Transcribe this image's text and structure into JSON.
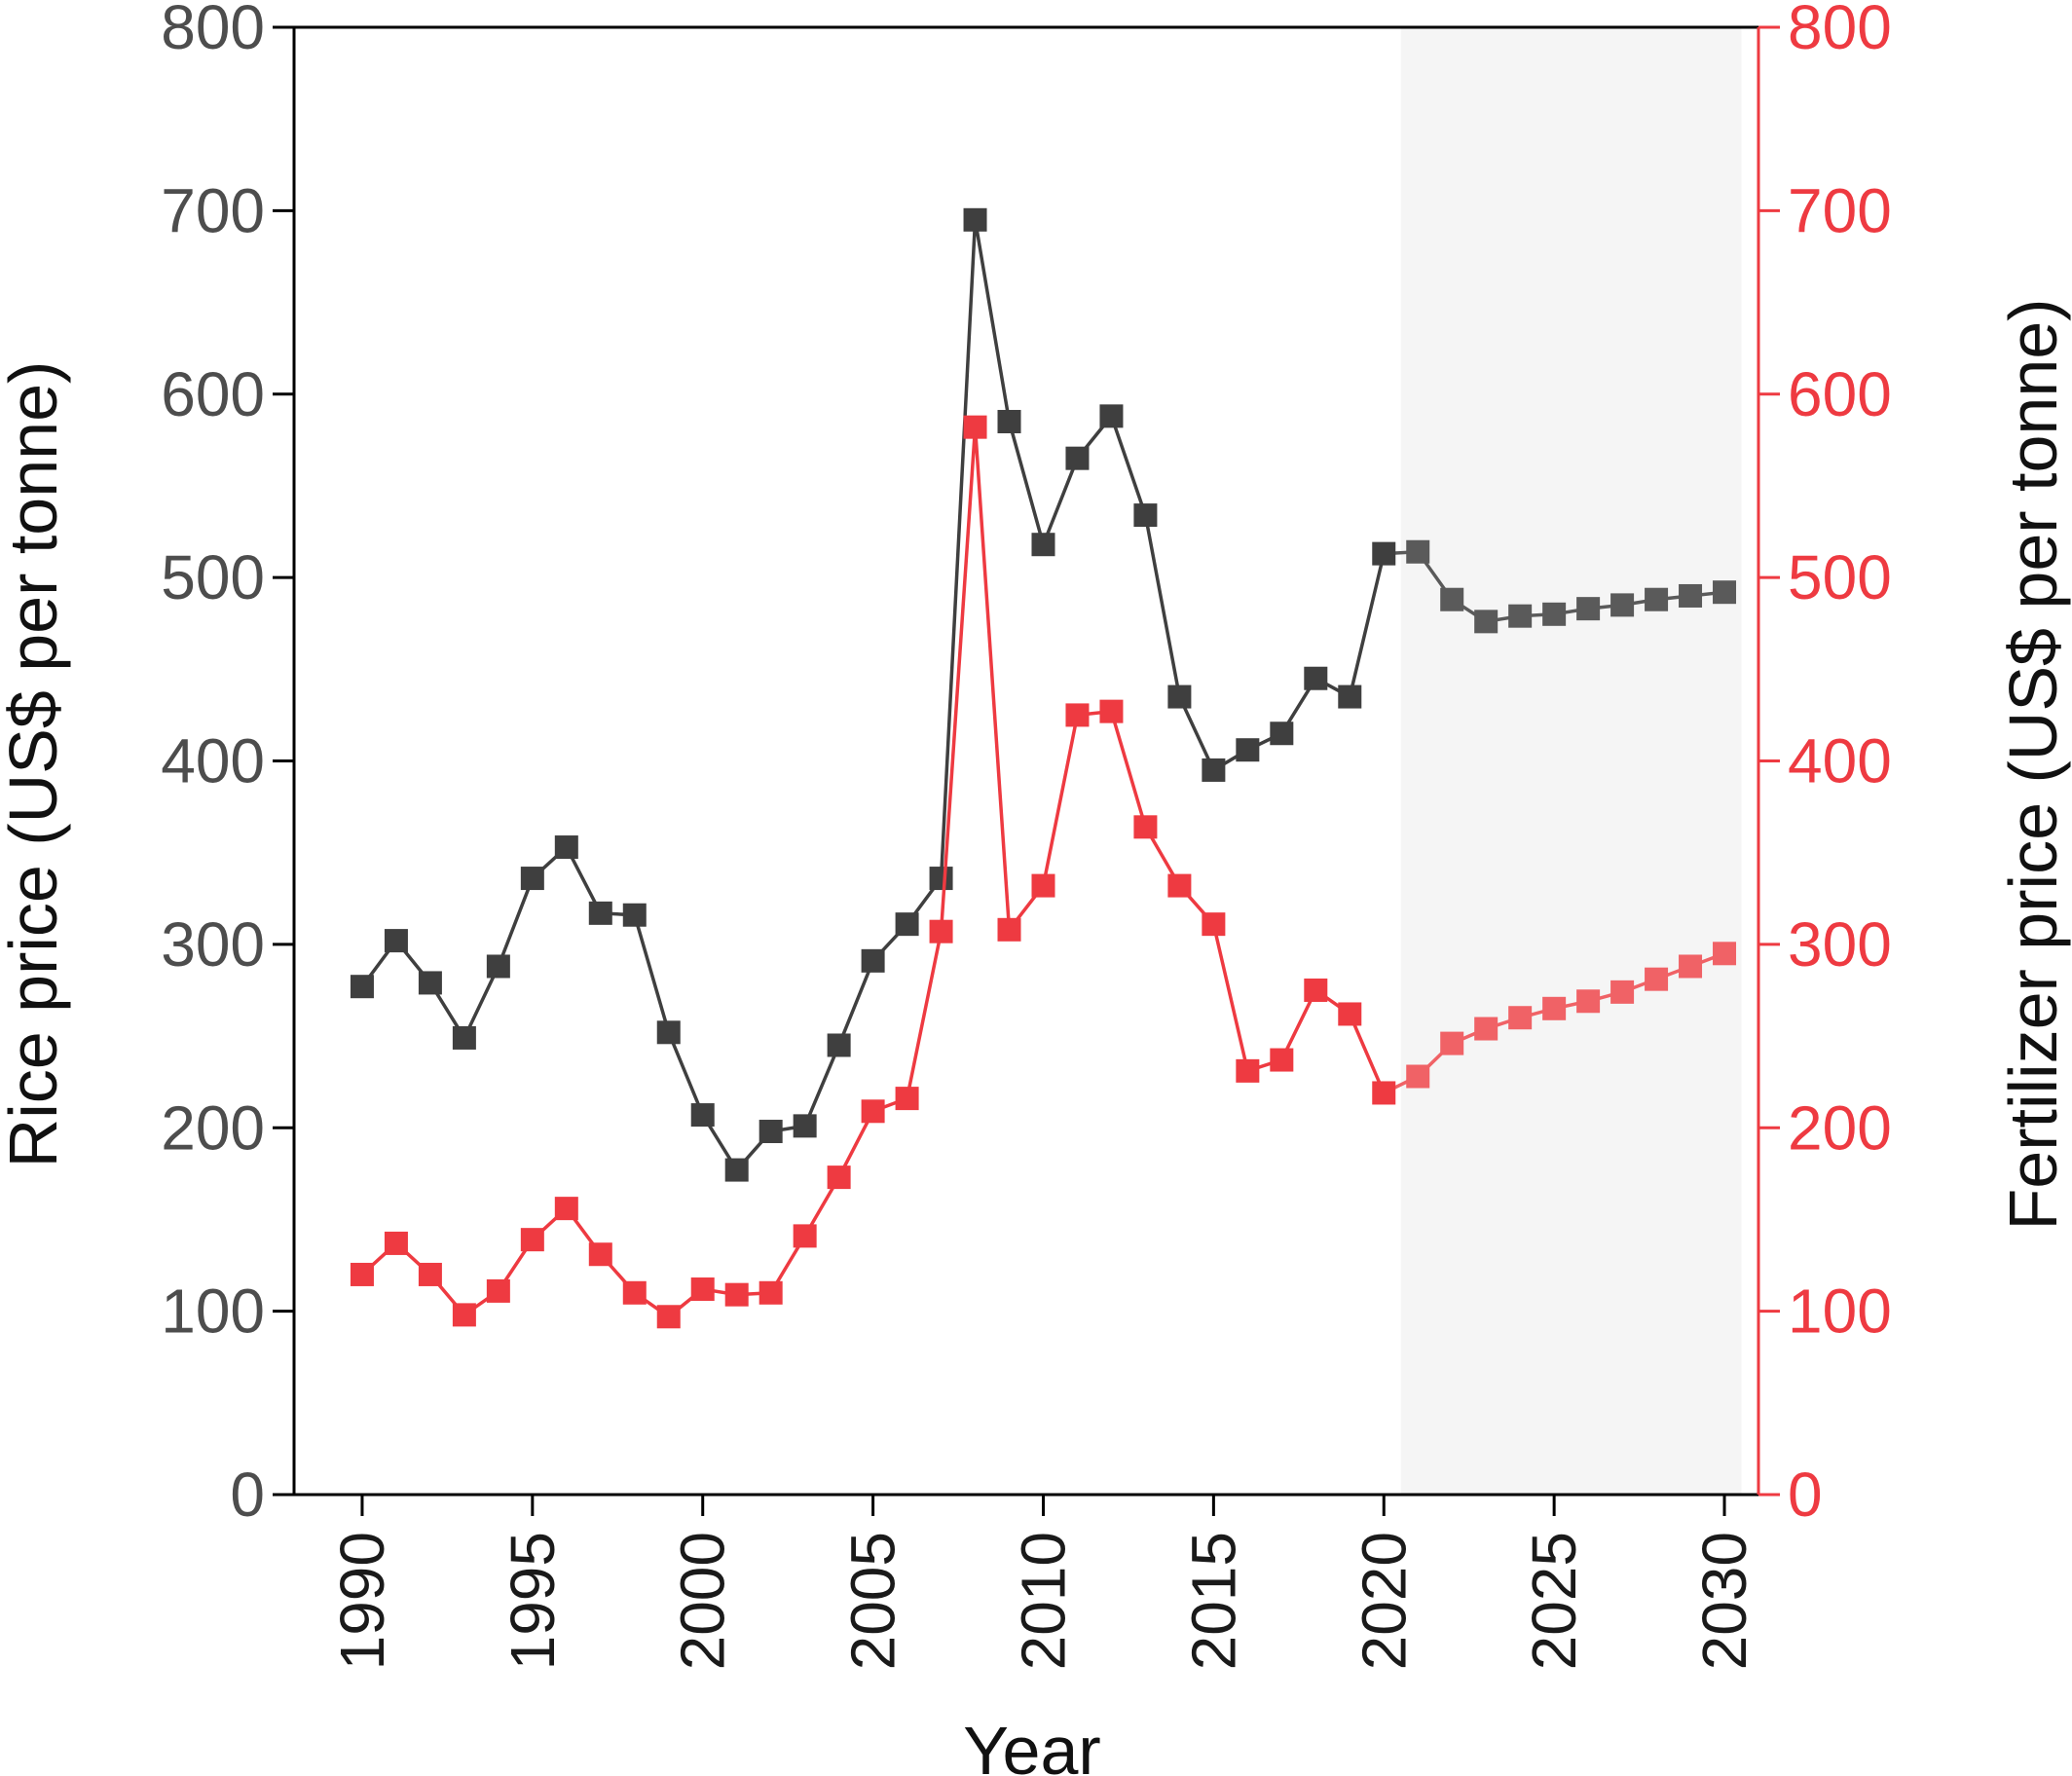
{
  "chart_data": {
    "type": "line",
    "xlabel": "Year",
    "ylabel": "Rice price (US$ per tonne)",
    "ylabel_right": "Fertilizer price (US$ per tonne)",
    "xlim": [
      1988,
      2031
    ],
    "ylim": [
      0,
      800
    ],
    "ylim_right": [
      0,
      800
    ],
    "x_ticks": [
      "1990",
      "1995",
      "2000",
      "2005",
      "2010",
      "2015",
      "2020",
      "2025",
      "2030"
    ],
    "y_ticks": [
      "0",
      "100",
      "200",
      "300",
      "400",
      "500",
      "600",
      "700",
      "800"
    ],
    "y_ticks_right": [
      "0",
      "100",
      "200",
      "300",
      "400",
      "500",
      "600",
      "700",
      "800"
    ],
    "grid": false,
    "projection_region": {
      "start": 2020.5,
      "end": 2030.5,
      "color": "#f5f5f5"
    },
    "colors": {
      "left_axis": "#4d4d4d",
      "right_axis": "#ee3a41"
    },
    "x": [
      1990,
      1991,
      1992,
      1993,
      1994,
      1995,
      1996,
      1997,
      1998,
      1999,
      2000,
      2001,
      2002,
      2003,
      2004,
      2005,
      2006,
      2007,
      2008,
      2009,
      2010,
      2011,
      2012,
      2013,
      2014,
      2015,
      2016,
      2017,
      2018,
      2019,
      2020,
      2021,
      2022,
      2023,
      2024,
      2025,
      2026,
      2027,
      2028,
      2029,
      2030
    ],
    "series": [
      {
        "axis": "left",
        "color": "#3f3f3f",
        "projection_color": "#5a5a5a",
        "values": [
          277,
          302,
          279,
          249,
          288,
          336,
          353,
          317,
          316,
          252,
          207,
          177,
          198,
          201,
          245,
          291,
          311,
          336,
          695,
          585,
          518,
          565,
          588,
          534,
          435,
          395,
          406,
          415,
          445,
          435,
          513,
          514,
          488,
          476,
          479,
          480,
          483,
          485,
          488,
          490,
          492
        ]
      },
      {
        "axis": "right",
        "color": "#ee3a41",
        "projection_color": "#f06266",
        "values": [
          120,
          137,
          120,
          98,
          111,
          139,
          156,
          131,
          110,
          97,
          112,
          109,
          110,
          141,
          173,
          209,
          216,
          307,
          582,
          308,
          332,
          425,
          427,
          364,
          332,
          311,
          231,
          237,
          275,
          262,
          219,
          228,
          246,
          254,
          260,
          265,
          269,
          274,
          281,
          288,
          295
        ]
      }
    ]
  }
}
